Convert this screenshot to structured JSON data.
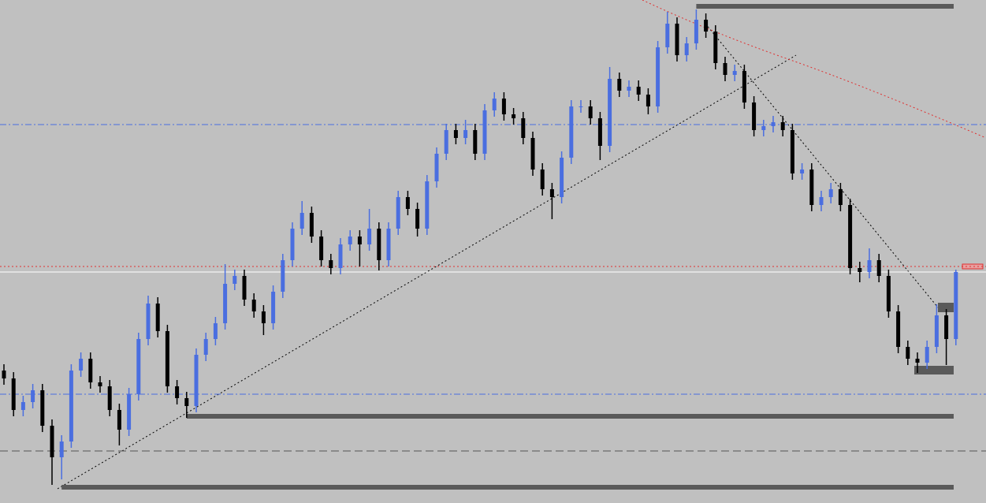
{
  "chart_data": {
    "type": "candlestick",
    "ylim": [
      0,
      638
    ],
    "up_color": "#4a6ee0",
    "down_color": "#000000",
    "open": [
      168,
      158,
      118,
      128,
      143,
      98,
      58,
      78,
      168,
      183,
      153,
      148,
      118,
      93,
      138,
      208,
      253,
      218,
      148,
      133,
      123,
      188,
      208,
      228,
      278,
      288,
      258,
      243,
      228,
      268,
      308,
      348,
      368,
      338,
      308,
      298,
      328,
      338,
      328,
      348,
      308,
      348,
      388,
      373,
      348,
      408,
      443,
      473,
      463,
      473,
      443,
      498,
      513,
      493,
      488,
      463,
      423,
      398,
      388,
      438,
      503,
      503,
      488,
      453,
      538,
      523,
      528,
      518,
      503,
      578,
      608,
      568,
      583,
      613,
      598,
      558,
      543,
      548,
      508,
      473,
      478,
      483,
      473,
      418,
      423,
      378,
      388,
      398,
      378,
      298,
      293,
      308,
      288,
      243,
      198,
      183,
      178,
      198,
      238,
      208
    ],
    "high": [
      176,
      166,
      136,
      151,
      151,
      106,
      86,
      176,
      191,
      191,
      161,
      156,
      126,
      146,
      216,
      263,
      261,
      226,
      156,
      141,
      196,
      216,
      236,
      303,
      296,
      296,
      266,
      251,
      276,
      316,
      356,
      383,
      376,
      346,
      316,
      336,
      346,
      346,
      373,
      356,
      356,
      396,
      396,
      381,
      416,
      451,
      481,
      481,
      486,
      481,
      506,
      521,
      521,
      501,
      496,
      471,
      431,
      406,
      446,
      511,
      511,
      511,
      496,
      553,
      546,
      536,
      536,
      526,
      586,
      623,
      616,
      591,
      626,
      621,
      606,
      566,
      556,
      556,
      516,
      486,
      491,
      491,
      481,
      431,
      431,
      396,
      406,
      406,
      386,
      306,
      323,
      316,
      296,
      251,
      206,
      191,
      206,
      252,
      246,
      296
    ],
    "low": [
      150,
      110,
      110,
      120,
      90,
      23,
      30,
      70,
      160,
      145,
      140,
      110,
      73,
      85,
      130,
      200,
      210,
      140,
      125,
      108,
      115,
      180,
      200,
      220,
      270,
      250,
      235,
      213,
      220,
      260,
      300,
      340,
      330,
      300,
      290,
      290,
      320,
      300,
      320,
      295,
      300,
      340,
      365,
      338,
      340,
      400,
      435,
      455,
      455,
      435,
      435,
      490,
      485,
      480,
      455,
      415,
      390,
      360,
      380,
      430,
      495,
      480,
      435,
      445,
      515,
      515,
      510,
      493,
      495,
      570,
      560,
      560,
      575,
      590,
      550,
      535,
      535,
      500,
      465,
      465,
      470,
      465,
      410,
      410,
      370,
      370,
      380,
      370,
      290,
      280,
      285,
      280,
      235,
      190,
      175,
      165,
      170,
      190,
      175,
      200
    ],
    "close": [
      158,
      118,
      128,
      143,
      98,
      58,
      78,
      168,
      183,
      153,
      148,
      118,
      93,
      138,
      208,
      253,
      218,
      148,
      133,
      123,
      188,
      208,
      228,
      278,
      288,
      258,
      243,
      228,
      268,
      308,
      348,
      368,
      338,
      308,
      298,
      328,
      338,
      328,
      348,
      308,
      348,
      388,
      373,
      348,
      408,
      443,
      473,
      463,
      473,
      443,
      498,
      513,
      493,
      488,
      463,
      423,
      398,
      388,
      438,
      503,
      503,
      488,
      453,
      538,
      523,
      528,
      518,
      503,
      578,
      608,
      568,
      583,
      613,
      598,
      558,
      543,
      548,
      508,
      473,
      478,
      483,
      473,
      418,
      423,
      378,
      388,
      398,
      378,
      298,
      293,
      308,
      288,
      243,
      198,
      183,
      178,
      198,
      238,
      208,
      293
    ],
    "levels": [
      {
        "value": 630,
        "color": "#5a5a5a",
        "style": "thick",
        "anchor": 72
      },
      {
        "value": 110,
        "color": "#5a5a5a",
        "style": "thick",
        "anchor": 19
      },
      {
        "value": 20,
        "color": "#5a5a5a",
        "style": "thick",
        "anchor": 6
      },
      {
        "value": 480,
        "color": "#4a6ee0",
        "style": "dashdot",
        "anchor": 0
      },
      {
        "value": 138,
        "color": "#4a6ee0",
        "style": "dashdot",
        "anchor": 0
      },
      {
        "value": 66,
        "color": "#555555",
        "style": "dashed",
        "anchor": 0
      },
      {
        "value": 300,
        "color": "#e03030",
        "style": "dotted",
        "anchor": 0
      },
      {
        "value": 293,
        "color": "#ffffff",
        "style": "solid",
        "anchor": 0
      }
    ]
  }
}
